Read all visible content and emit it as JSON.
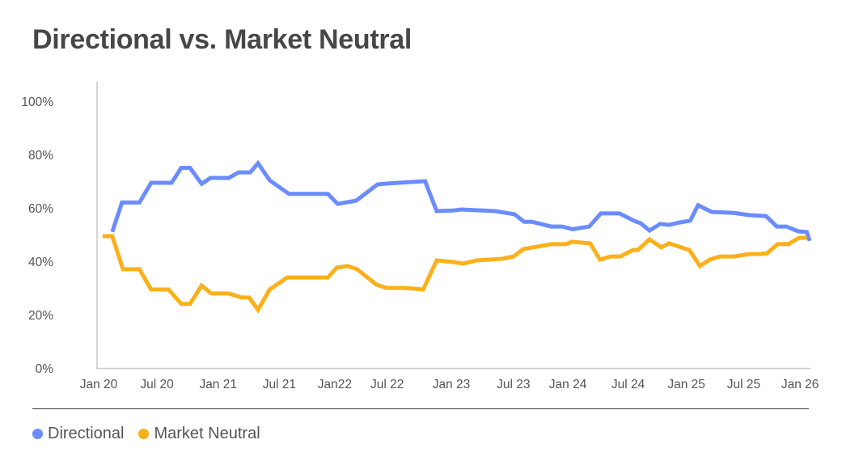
{
  "chart_data": {
    "type": "line",
    "title": "Directional vs. Market Neutral",
    "x_unit": "months since Jan 2020",
    "xlim": [
      -0.2,
      73.5
    ],
    "ylim": [
      0,
      100
    ],
    "grid": false,
    "legend_position": "bottom-left",
    "y_ticks": [
      "0%",
      "20%",
      "40%",
      "60%",
      "80%",
      "100%"
    ],
    "y_tick_values": [
      0,
      20,
      40,
      60,
      80,
      100
    ],
    "x_ticks": [
      "Jan 20",
      "Jul 20",
      "Jan 21",
      "Jul 21",
      "Jan22",
      "Jul 22",
      "Jan 23",
      "Jul 23",
      "Jan 24",
      "Jul 24",
      "Jan 25",
      "Jul 25",
      "Jan 26"
    ],
    "x_tick_values": [
      0,
      6,
      12.3,
      18.6,
      24.3,
      29.7,
      36.3,
      42.7,
      48.3,
      54.5,
      60.5,
      66.4,
      72.2
    ],
    "series": [
      {
        "name": "Directional",
        "color": "#6b8cfd",
        "points": [
          [
            1.4,
            51
          ],
          [
            2.4,
            62
          ],
          [
            4.2,
            62
          ],
          [
            5.4,
            69.4
          ],
          [
            7.5,
            69.4
          ],
          [
            8.5,
            75
          ],
          [
            9.4,
            75
          ],
          [
            10.6,
            69
          ],
          [
            11.5,
            71.2
          ],
          [
            13.4,
            71.2
          ],
          [
            14.4,
            73.3
          ],
          [
            15.6,
            73.3
          ],
          [
            16.4,
            76.7
          ],
          [
            17.6,
            70.3
          ],
          [
            19.6,
            65.2
          ],
          [
            23.6,
            65.2
          ],
          [
            24.6,
            61.5
          ],
          [
            26.5,
            62.7
          ],
          [
            28.7,
            68.8
          ],
          [
            29.6,
            69.1
          ],
          [
            33.6,
            70
          ],
          [
            34.8,
            58.8
          ],
          [
            36.5,
            59
          ],
          [
            37.3,
            59.4
          ],
          [
            40.8,
            58.8
          ],
          [
            42.8,
            57.6
          ],
          [
            43.8,
            54.8
          ],
          [
            44.6,
            54.8
          ],
          [
            46.6,
            53
          ],
          [
            47.7,
            53
          ],
          [
            48.8,
            52
          ],
          [
            50.5,
            53
          ],
          [
            51.7,
            57.9
          ],
          [
            53.6,
            57.9
          ],
          [
            55.2,
            55
          ],
          [
            55.8,
            54.2
          ],
          [
            56.7,
            51.5
          ],
          [
            57.8,
            54
          ],
          [
            58.7,
            53.6
          ],
          [
            59.8,
            54.5
          ],
          [
            60.9,
            55.2
          ],
          [
            61.7,
            61
          ],
          [
            63.1,
            58.5
          ],
          [
            65.4,
            58.1
          ],
          [
            66.9,
            57.3
          ],
          [
            68.7,
            56.9
          ],
          [
            69.8,
            53
          ],
          [
            70.8,
            53
          ],
          [
            72,
            51.2
          ],
          [
            72.9,
            50.9
          ],
          [
            73.2,
            47.6
          ]
        ]
      },
      {
        "name": "Market Neutral",
        "color": "#fbb01b",
        "points": [
          [
            0.4,
            49.4
          ],
          [
            1.4,
            49.4
          ],
          [
            2.5,
            37
          ],
          [
            4.2,
            37
          ],
          [
            5.4,
            29.4
          ],
          [
            7.2,
            29.4
          ],
          [
            8.5,
            24
          ],
          [
            9.4,
            24
          ],
          [
            10.6,
            30.9
          ],
          [
            11.6,
            27.9
          ],
          [
            13.4,
            27.9
          ],
          [
            14.7,
            26.4
          ],
          [
            15.5,
            26.4
          ],
          [
            16.4,
            21.8
          ],
          [
            17.6,
            29.4
          ],
          [
            19.4,
            33.9
          ],
          [
            23.6,
            33.9
          ],
          [
            24.5,
            37.6
          ],
          [
            25.6,
            38.2
          ],
          [
            26.6,
            37
          ],
          [
            28.6,
            31.2
          ],
          [
            29.6,
            30
          ],
          [
            31.5,
            30
          ],
          [
            33.4,
            29.4
          ],
          [
            34.8,
            40.3
          ],
          [
            36.5,
            39.7
          ],
          [
            37.5,
            39.1
          ],
          [
            38.9,
            40.3
          ],
          [
            41.5,
            40.9
          ],
          [
            42.7,
            41.8
          ],
          [
            43.7,
            44.5
          ],
          [
            46.6,
            46.4
          ],
          [
            48.1,
            46.4
          ],
          [
            48.7,
            47.3
          ],
          [
            50.6,
            46.7
          ],
          [
            51.6,
            40.6
          ],
          [
            52.7,
            41.8
          ],
          [
            53.7,
            41.8
          ],
          [
            55,
            44.2
          ],
          [
            55.5,
            44.2
          ],
          [
            56.7,
            48.2
          ],
          [
            57.9,
            45.2
          ],
          [
            58.7,
            46.7
          ],
          [
            60.8,
            44.2
          ],
          [
            61.9,
            38.2
          ],
          [
            62.9,
            40.6
          ],
          [
            64,
            41.8
          ],
          [
            65.4,
            41.8
          ],
          [
            66.9,
            42.7
          ],
          [
            68.1,
            42.7
          ],
          [
            68.8,
            43
          ],
          [
            69.9,
            46.4
          ],
          [
            71,
            46.4
          ],
          [
            72.1,
            48.8
          ],
          [
            72.9,
            48.8
          ]
        ]
      }
    ]
  }
}
